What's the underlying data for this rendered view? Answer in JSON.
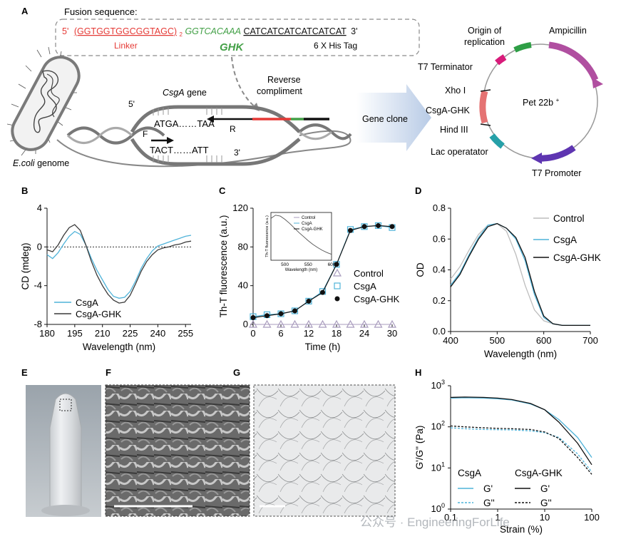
{
  "panel_letters": [
    "A",
    "B",
    "C",
    "D",
    "E",
    "F",
    "G",
    "H"
  ],
  "panel_a": {
    "fusion_label": "Fusion sequence:",
    "five_prime": "5'",
    "linker_seq": "(GGTGGTGGCGGTAGC)",
    "linker_sub": "2",
    "ghk_seq": "GGTCACAAA",
    "his_seq": "CATCATCATCATCATCAT",
    "three_prime": "3'",
    "linker_label": "Linker",
    "ghk_label": "GHK",
    "his_label": "6 X His Tag",
    "reverse_label_1": "Reverse",
    "reverse_label_2": "compliment",
    "gene_label_italic": "CsgA",
    "gene_label_rest": " gene",
    "five_prime_2": "5'",
    "three_prime_2": "3'",
    "top_strand": "ATGA……TAA",
    "bottom_strand": "TACT……ATT",
    "primer_r": "R",
    "primer_f": "F",
    "genome_italic": "E.coli",
    "genome_rest": " genome",
    "gene_clone": "Gene clone",
    "plasmid_name": "Pet 22b",
    "plasmid_sup": "+",
    "features": [
      "Origin of",
      "replication",
      "Ampicillin",
      "T7 Terminator",
      "Xho I",
      "CsgA-GHK",
      "Hind III",
      "Lac operatator",
      "T7 Promoter"
    ],
    "colors": {
      "linker": "#e53935",
      "ghk": "#43a047",
      "ampicillin": "#b04fa0",
      "origin": "#2e9e45",
      "terminator": "#d81b7a",
      "insert": "#e57373",
      "lac": "#26a0a8",
      "promoter": "#5e35b1"
    }
  },
  "chart_data": [
    {
      "panel": "B",
      "type": "line",
      "xlabel": "Wavelength (nm)",
      "ylabel": "CD (mdeg)",
      "xlim": [
        180,
        258
      ],
      "ylim": [
        -8,
        4
      ],
      "xticks": [
        180,
        195,
        210,
        225,
        240,
        255
      ],
      "yticks": [
        -8,
        -4,
        0,
        4
      ],
      "zero_line": true,
      "series": [
        {
          "name": "CsgA",
          "color": "#4fb3d9",
          "x": [
            180,
            183,
            186,
            189,
            192,
            195,
            198,
            201,
            204,
            207,
            210,
            213,
            216,
            219,
            222,
            225,
            228,
            231,
            234,
            237,
            240,
            243,
            246,
            249,
            252,
            255,
            258
          ],
          "y": [
            -0.8,
            -1.2,
            -0.6,
            0.3,
            1.1,
            1.6,
            1.3,
            0.2,
            -1.2,
            -2.4,
            -3.4,
            -4.4,
            -5.1,
            -5.3,
            -5.2,
            -4.6,
            -3.5,
            -2.2,
            -1.2,
            -0.4,
            0.1,
            0.3,
            0.5,
            0.7,
            0.9,
            1.1,
            1.2
          ]
        },
        {
          "name": "CsgA-GHK",
          "color": "#3a3a3a",
          "x": [
            180,
            183,
            186,
            189,
            192,
            195,
            198,
            201,
            204,
            207,
            210,
            213,
            216,
            219,
            222,
            225,
            228,
            231,
            234,
            237,
            240,
            243,
            246,
            249,
            252,
            255,
            258
          ],
          "y": [
            -0.3,
            -0.5,
            0.2,
            1.2,
            2.0,
            2.3,
            1.7,
            0.2,
            -1.5,
            -2.9,
            -4.0,
            -4.9,
            -5.5,
            -5.8,
            -5.7,
            -5.0,
            -3.8,
            -2.5,
            -1.5,
            -0.8,
            -0.3,
            -0.1,
            0.0,
            0.2,
            0.3,
            0.5,
            0.6
          ]
        }
      ]
    },
    {
      "panel": "C",
      "type": "scatter",
      "xlabel": "Time (h)",
      "ylabel": "Th-T fluorescence (a.u.)",
      "xlim": [
        0,
        30
      ],
      "ylim": [
        0,
        120
      ],
      "xticks": [
        0,
        6,
        12,
        18,
        24,
        30
      ],
      "yticks": [
        0,
        40,
        80,
        120
      ],
      "series": [
        {
          "name": "Control",
          "color": "#a89bbd",
          "marker": "triangle",
          "x": [
            0,
            3,
            6,
            9,
            12,
            15,
            18,
            21,
            24,
            27,
            30
          ],
          "y": [
            0,
            0,
            0,
            0,
            0,
            0,
            0,
            0,
            0,
            0,
            0
          ]
        },
        {
          "name": "CsgA",
          "color": "#4fb3d9",
          "marker": "square",
          "x": [
            0,
            3,
            6,
            9,
            12,
            15,
            18,
            21,
            24,
            27,
            30
          ],
          "y": [
            8,
            10,
            11,
            14,
            24,
            34,
            62,
            98,
            101,
            102,
            100
          ]
        },
        {
          "name": "CsgA-GHK",
          "color": "#111111",
          "marker": "circle",
          "x": [
            0,
            3,
            6,
            9,
            12,
            15,
            18,
            21,
            24,
            27,
            30
          ],
          "y": [
            7,
            9,
            11,
            14,
            24,
            33,
            62,
            97,
            101,
            102,
            101
          ]
        }
      ],
      "inset": {
        "xlabel": "Wavelength (nm)",
        "ylabel": "Th-T fluorescence (a.u.)",
        "xlim": [
          470,
          600
        ],
        "xticks": [
          500,
          550,
          600
        ],
        "legend": [
          "Control",
          "CsgA",
          "CsgA-GHK"
        ],
        "x": [
          470,
          480,
          490,
          500,
          510,
          520,
          530,
          540,
          550,
          560,
          570,
          580,
          590,
          600
        ],
        "y": [
          0.92,
          0.99,
          0.97,
          0.9,
          0.81,
          0.71,
          0.61,
          0.52,
          0.43,
          0.35,
          0.28,
          0.22,
          0.17,
          0.13
        ]
      }
    },
    {
      "panel": "D",
      "type": "line",
      "xlabel": "Wavelength (nm)",
      "ylabel": "OD",
      "xlim": [
        400,
        700
      ],
      "ylim": [
        0,
        0.8
      ],
      "xticks": [
        400,
        500,
        600,
        700
      ],
      "yticks": [
        0.0,
        0.2,
        0.4,
        0.6,
        0.8
      ],
      "series": [
        {
          "name": "Control",
          "color": "#bdbdbd",
          "x": [
            400,
            420,
            440,
            460,
            480,
            500,
            520,
            540,
            560,
            580,
            600,
            620,
            640,
            660,
            680,
            700
          ],
          "y": [
            0.34,
            0.42,
            0.53,
            0.63,
            0.69,
            0.7,
            0.65,
            0.5,
            0.3,
            0.14,
            0.07,
            0.05,
            0.04,
            0.04,
            0.04,
            0.04
          ]
        },
        {
          "name": "CsgA",
          "color": "#4fb3d9",
          "x": [
            400,
            420,
            440,
            460,
            480,
            500,
            520,
            540,
            560,
            580,
            600,
            620,
            640,
            660,
            680,
            700
          ],
          "y": [
            0.3,
            0.38,
            0.5,
            0.61,
            0.69,
            0.7,
            0.67,
            0.6,
            0.46,
            0.24,
            0.09,
            0.05,
            0.04,
            0.04,
            0.04,
            0.04
          ]
        },
        {
          "name": "CsgA-GHK",
          "color": "#111111",
          "x": [
            400,
            420,
            440,
            460,
            480,
            500,
            520,
            540,
            560,
            580,
            600,
            620,
            640,
            660,
            680,
            700
          ],
          "y": [
            0.29,
            0.37,
            0.49,
            0.6,
            0.68,
            0.7,
            0.67,
            0.61,
            0.48,
            0.26,
            0.1,
            0.05,
            0.04,
            0.04,
            0.04,
            0.04
          ]
        }
      ]
    },
    {
      "panel": "H",
      "type": "line",
      "xscale": "log",
      "yscale": "log",
      "xlabel": "Strain (%)",
      "ylabel": "G'/G'' (Pa)",
      "xlim": [
        0.1,
        100
      ],
      "ylim": [
        1,
        1000
      ],
      "xtick_values": [
        0.1,
        1,
        10,
        100
      ],
      "xtick_labels": [
        "0.1",
        "1",
        "10",
        "100"
      ],
      "ytick_values": [
        1,
        10,
        100,
        1000
      ],
      "legend_groups": [
        "CsgA",
        "CsgA-GHK"
      ],
      "legend_entries": [
        "G'",
        "G''",
        "G'",
        "G''"
      ],
      "series": [
        {
          "name": "G'",
          "group": "CsgA",
          "color": "#4fb3d9",
          "dash": false,
          "x": [
            0.1,
            0.2,
            0.5,
            1,
            2,
            5,
            10,
            20,
            50,
            100
          ],
          "y": [
            500,
            510,
            500,
            480,
            450,
            360,
            260,
            150,
            55,
            18
          ]
        },
        {
          "name": "G''",
          "group": "CsgA",
          "color": "#4fb3d9",
          "dash": true,
          "x": [
            0.1,
            0.2,
            0.5,
            1,
            2,
            5,
            10,
            20,
            50,
            100
          ],
          "y": [
            95,
            90,
            86,
            85,
            84,
            80,
            72,
            55,
            22,
            8
          ]
        },
        {
          "name": "G'",
          "group": "CsgA-GHK",
          "color": "#111111",
          "dash": false,
          "x": [
            0.1,
            0.2,
            0.5,
            1,
            2,
            5,
            10,
            20,
            50,
            100
          ],
          "y": [
            520,
            530,
            520,
            500,
            460,
            370,
            260,
            130,
            40,
            12
          ]
        },
        {
          "name": "G''",
          "group": "CsgA-GHK",
          "color": "#111111",
          "dash": true,
          "x": [
            0.1,
            0.2,
            0.5,
            1,
            2,
            5,
            10,
            20,
            50,
            100
          ],
          "y": [
            105,
            100,
            95,
            92,
            90,
            86,
            75,
            52,
            18,
            7
          ]
        }
      ]
    }
  ],
  "images": {
    "watermark": "公众号 · EngineeringForLife"
  }
}
